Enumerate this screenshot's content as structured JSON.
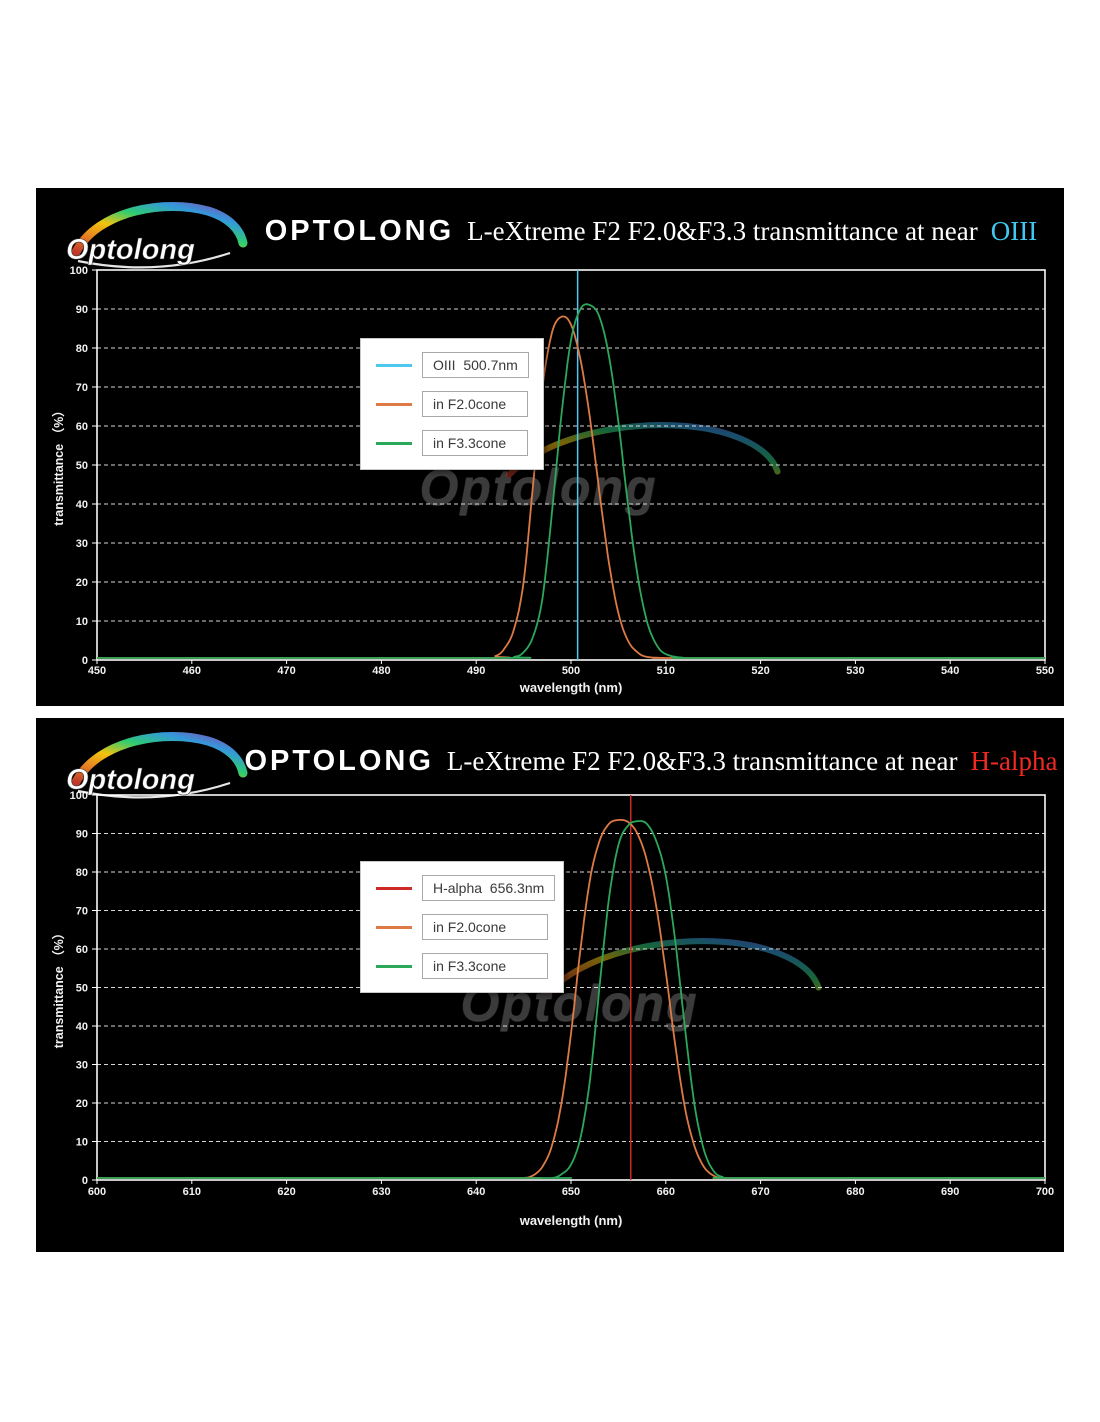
{
  "page": {
    "background": "#ffffff",
    "panel_background": "#000000"
  },
  "panels": [
    {
      "logo_text": "Optolong",
      "title_brand": "OPTOLONG",
      "title_rest": "L-eXtreme F2 F2.0&F3.3 transmittance at near",
      "title_highlight": "OIII",
      "title_highlight_color": "#41C7F0",
      "watermark_text": "Optolong"
    },
    {
      "logo_text": "Optolong",
      "title_brand": "OPTOLONG",
      "title_rest": "L-eXtreme F2 F2.0&F3.3 transmittance at near",
      "title_highlight": "H-alpha",
      "title_highlight_color": "#F02A20",
      "watermark_text": "Optolong"
    }
  ],
  "chart_data": [
    {
      "type": "line",
      "title": "OPTOLONG L-eXtreme F2 F2.0&F3.3 transmittance at near OIII",
      "xlabel": "wavelength  (nm)",
      "ylabel": "transmittance （%）",
      "xlim": [
        450,
        550
      ],
      "ylim": [
        0,
        100
      ],
      "xticks": [
        450,
        460,
        470,
        480,
        490,
        500,
        510,
        520,
        530,
        540,
        550
      ],
      "yticks": [
        0,
        10,
        20,
        30,
        40,
        50,
        60,
        70,
        80,
        90,
        100
      ],
      "grid": "horizontal-dashed",
      "legend_position": "upper-left",
      "series": [
        {
          "name": "OIII  500.7nm",
          "color": "#4FC8EE",
          "type": "vline",
          "x": 500.7
        },
        {
          "name": "in F2.0cone",
          "color": "#DD7A45",
          "type": "curve",
          "peak_percent": 88,
          "peak_nm": 499,
          "points": [
            [
              450,
              0
            ],
            [
              490,
              0.2
            ],
            [
              492,
              1
            ],
            [
              493,
              3
            ],
            [
              494,
              8
            ],
            [
              495,
              20
            ],
            [
              496,
              45
            ],
            [
              497,
              70
            ],
            [
              498,
              84
            ],
            [
              499,
              88
            ],
            [
              500,
              86
            ],
            [
              501,
              77
            ],
            [
              502,
              62
            ],
            [
              503,
              43
            ],
            [
              504,
              25
            ],
            [
              505,
              12
            ],
            [
              506,
              5
            ],
            [
              507,
              2
            ],
            [
              508,
              0.8
            ],
            [
              510,
              0.2
            ],
            [
              512,
              0
            ],
            [
              550,
              0
            ]
          ]
        },
        {
          "name": "in F3.3cone",
          "color": "#2CA85A",
          "type": "curve",
          "peak_percent": 91,
          "peak_nm": 501.5,
          "points": [
            [
              450,
              0
            ],
            [
              492,
              0
            ],
            [
              494,
              0.8
            ],
            [
              495,
              2
            ],
            [
              496,
              6
            ],
            [
              497,
              16
            ],
            [
              498,
              38
            ],
            [
              499,
              63
            ],
            [
              500,
              82
            ],
            [
              501,
              90
            ],
            [
              502,
              91
            ],
            [
              503,
              88
            ],
            [
              504,
              78
            ],
            [
              505,
              61
            ],
            [
              506,
              40
            ],
            [
              507,
              22
            ],
            [
              508,
              10
            ],
            [
              509,
              4
            ],
            [
              510,
              1.5
            ],
            [
              512,
              0.3
            ],
            [
              514,
              0
            ],
            [
              550,
              0
            ]
          ]
        }
      ]
    },
    {
      "type": "line",
      "title": "OPTOLONG L-eXtreme F2 F2.0&F3.3 transmittance at near H-alpha",
      "xlabel": "wavelength  (nm)",
      "ylabel": "transmittance （%）",
      "xlim": [
        600,
        700
      ],
      "ylim": [
        0,
        100
      ],
      "xticks": [
        600,
        610,
        620,
        630,
        640,
        650,
        660,
        670,
        680,
        690,
        700
      ],
      "yticks": [
        0,
        10,
        20,
        30,
        40,
        50,
        60,
        70,
        80,
        90,
        100
      ],
      "grid": "horizontal-dashed",
      "legend_position": "upper-left",
      "series": [
        {
          "name": "H-alpha  656.3nm",
          "color": "#CE2B26",
          "type": "vline",
          "x": 656.3
        },
        {
          "name": "in F2.0cone",
          "color": "#DD7A45",
          "type": "curve",
          "peak_percent": 93.5,
          "peak_nm": 655,
          "points": [
            [
              600,
              0
            ],
            [
              643,
              0
            ],
            [
              645,
              0.4
            ],
            [
              646,
              1.2
            ],
            [
              647,
              3.5
            ],
            [
              648,
              9
            ],
            [
              649,
              20
            ],
            [
              650,
              38
            ],
            [
              651,
              60
            ],
            [
              652,
              78
            ],
            [
              653,
              88
            ],
            [
              654,
              92.5
            ],
            [
              655,
              93.5
            ],
            [
              656,
              93
            ],
            [
              657,
              90
            ],
            [
              658,
              83
            ],
            [
              659,
              71
            ],
            [
              660,
              54
            ],
            [
              661,
              35
            ],
            [
              662,
              19
            ],
            [
              663,
              9
            ],
            [
              664,
              3.5
            ],
            [
              665,
              1.2
            ],
            [
              666,
              0.4
            ],
            [
              668,
              0
            ],
            [
              700,
              0
            ]
          ]
        },
        {
          "name": "in F3.3cone",
          "color": "#2CA85A",
          "type": "curve",
          "peak_percent": 93,
          "peak_nm": 657,
          "points": [
            [
              600,
              0
            ],
            [
              646,
              0
            ],
            [
              648,
              0.4
            ],
            [
              649,
              1.5
            ],
            [
              650,
              4
            ],
            [
              651,
              11
            ],
            [
              652,
              26
            ],
            [
              653,
              50
            ],
            [
              654,
              73
            ],
            [
              655,
              87
            ],
            [
              656,
              92
            ],
            [
              657,
              93.2
            ],
            [
              658,
              92.5
            ],
            [
              659,
              88
            ],
            [
              660,
              79
            ],
            [
              661,
              62
            ],
            [
              662,
              40
            ],
            [
              663,
              20
            ],
            [
              664,
              8
            ],
            [
              665,
              2.5
            ],
            [
              666,
              0.8
            ],
            [
              668,
              0
            ],
            [
              700,
              0
            ]
          ]
        }
      ]
    }
  ]
}
